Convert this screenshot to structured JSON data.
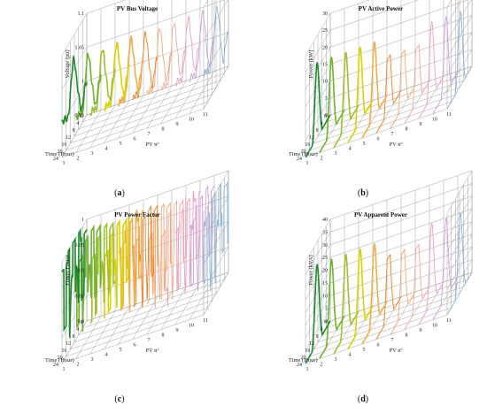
{
  "colors": [
    "#8ab4d8",
    "#c9a3d8",
    "#ea9ec4",
    "#f2a8a0",
    "#f6a66e",
    "#ee7d1d",
    "#efad50",
    "#ddd000",
    "#a0c030",
    "#6fb22c",
    "#1e8a2a"
  ],
  "chart_data": [
    {
      "type": "line",
      "id": "a",
      "title": "PV Bus Voltage",
      "ylabel": "Voltage (pu)",
      "xlabel": "PV nº",
      "zlabel": "Time (Hour)",
      "caption": "a",
      "ylim": [
        0.95,
        1.1
      ],
      "yticks": [
        "0.95",
        "1",
        "1.05",
        "1.1"
      ],
      "time_ticks": [
        "0",
        "4",
        "8",
        "12",
        "16",
        "20",
        "24"
      ],
      "pv_ticks": [
        "1",
        "2",
        "3",
        "4",
        "5",
        "6",
        "7",
        "8",
        "9",
        "10",
        "11"
      ],
      "grid": true,
      "series_profile": "voltage"
    },
    {
      "type": "line",
      "id": "b",
      "title": "PV Active Power",
      "ylabel": "Power (kW)",
      "xlabel": "PV nº",
      "zlabel": "Time (Hour)",
      "caption": "b",
      "ylim": [
        0,
        30
      ],
      "yticks": [
        "0",
        "5",
        "10",
        "15",
        "20",
        "25",
        "30"
      ],
      "time_ticks": [
        "0",
        "4",
        "8",
        "12",
        "16",
        "20",
        "24"
      ],
      "pv_ticks": [
        "1",
        "2",
        "3",
        "4",
        "5",
        "6",
        "7",
        "8",
        "9",
        "10",
        "11"
      ],
      "grid": true,
      "series_profile": "power"
    },
    {
      "type": "line",
      "id": "c",
      "title": "PV Power Factor",
      "ylabel": "Power Factor",
      "xlabel": "PV nº",
      "zlabel": "Time (Hour)",
      "caption": "c",
      "ylim": [
        0.8,
        1.0
      ],
      "yticks": [
        "0.8",
        "0.85",
        "0.9",
        "0.95",
        "1"
      ],
      "time_ticks": [
        "0",
        "4",
        "8",
        "12",
        "16",
        "20",
        "24"
      ],
      "pv_ticks": [
        "1",
        "2",
        "3",
        "4",
        "5",
        "6",
        "7",
        "8",
        "9",
        "10",
        "11"
      ],
      "grid": true,
      "series_profile": "pf"
    },
    {
      "type": "line",
      "id": "d",
      "title": "PV Apparent Power",
      "ylabel": "Power (kVA)",
      "xlabel": "PV nº",
      "zlabel": "Time (Hour)",
      "caption": "d",
      "ylim": [
        0,
        40
      ],
      "yticks": [
        "0",
        "5",
        "10",
        "15",
        "20",
        "25",
        "30",
        "35",
        "40"
      ],
      "time_ticks": [
        "0",
        "4",
        "8",
        "12",
        "16",
        "20",
        "24"
      ],
      "pv_ticks": [
        "1",
        "2",
        "3",
        "4",
        "5",
        "6",
        "7",
        "8",
        "9",
        "10",
        "11"
      ],
      "grid": true,
      "series_profile": "apparent"
    }
  ]
}
